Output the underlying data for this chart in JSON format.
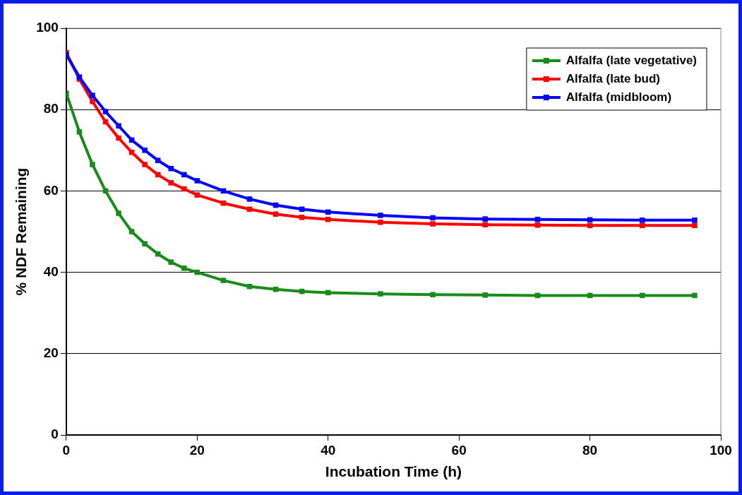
{
  "chart_data": {
    "type": "line",
    "xlabel": "Incubation Time (h)",
    "ylabel": "% NDF Remaining",
    "x": [
      0,
      2,
      4,
      6,
      8,
      10,
      12,
      14,
      16,
      18,
      20,
      24,
      28,
      32,
      36,
      40,
      48,
      56,
      64,
      72,
      80,
      88,
      96
    ],
    "series": [
      {
        "name": "Alfalfa (late vegetative)",
        "color": "#1a8a1a",
        "values": [
          84,
          74.5,
          66.5,
          60,
          54.5,
          50,
          47,
          44.5,
          42.5,
          41,
          40,
          38,
          36.5,
          35.8,
          35.3,
          35,
          34.7,
          34.5,
          34.4,
          34.3,
          34.3,
          34.3,
          34.3
        ]
      },
      {
        "name": "Alfalfa (late bud)",
        "color": "#ff0000",
        "values": [
          94,
          87.5,
          82,
          77,
          73,
          69.5,
          66.5,
          64,
          62,
          60.5,
          59,
          57,
          55.5,
          54.3,
          53.5,
          53,
          52.3,
          51.9,
          51.7,
          51.6,
          51.5,
          51.5,
          51.5
        ]
      },
      {
        "name": "Alfalfa (midbloom)",
        "color": "#0000ff",
        "values": [
          93.5,
          88,
          83.5,
          79.5,
          76,
          72.5,
          70,
          67.5,
          65.5,
          64,
          62.5,
          60,
          58,
          56.5,
          55.5,
          54.8,
          54,
          53.4,
          53.1,
          53,
          52.9,
          52.8,
          52.8
        ]
      }
    ],
    "xlim": [
      0,
      100
    ],
    "xticks": [
      0,
      20,
      40,
      60,
      80,
      100
    ],
    "ylim": [
      0,
      100
    ],
    "yticks": [
      0,
      20,
      40,
      60,
      80,
      100
    ],
    "grid": "y",
    "legend": "top right",
    "marker": "square",
    "line_style": "solid"
  }
}
